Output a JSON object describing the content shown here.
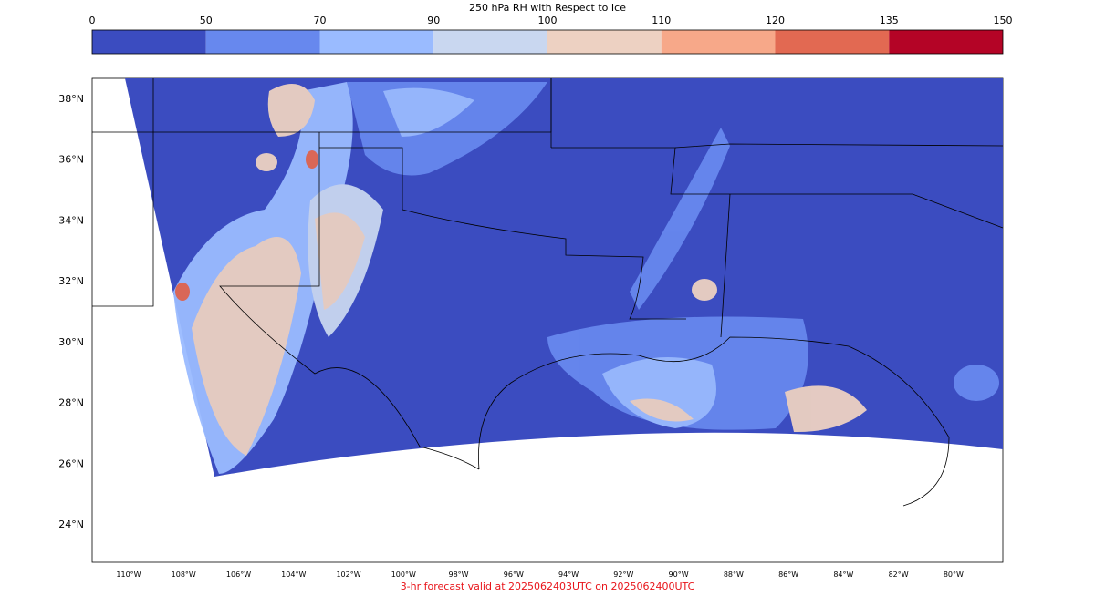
{
  "title": "250 hPa RH with Respect to Ice",
  "colorbar": {
    "bounds": [
      0,
      50,
      70,
      90,
      100,
      110,
      120,
      135,
      150
    ],
    "colors": [
      "#3b4cc0",
      "#6788ee",
      "#9abbff",
      "#c9d7f0",
      "#edd1c2",
      "#f7a889",
      "#e26952",
      "#b40426"
    ]
  },
  "lat_ticks": [
    {
      "value": 38,
      "label": "38°N"
    },
    {
      "value": 36,
      "label": "36°N"
    },
    {
      "value": 34,
      "label": "34°N"
    },
    {
      "value": 32,
      "label": "32°N"
    },
    {
      "value": 30,
      "label": "30°N"
    },
    {
      "value": 28,
      "label": "28°N"
    },
    {
      "value": 26,
      "label": "26°N"
    },
    {
      "value": 24,
      "label": "24°N"
    }
  ],
  "lon_ticks": [
    {
      "value": -110,
      "label": "110°W"
    },
    {
      "value": -108,
      "label": "108°W"
    },
    {
      "value": -106,
      "label": "106°W"
    },
    {
      "value": -104,
      "label": "104°W"
    },
    {
      "value": -102,
      "label": "102°W"
    },
    {
      "value": -100,
      "label": "100°W"
    },
    {
      "value": -98,
      "label": "98°W"
    },
    {
      "value": -96,
      "label": "96°W"
    },
    {
      "value": -94,
      "label": "94°W"
    },
    {
      "value": -92,
      "label": "92°W"
    },
    {
      "value": -90,
      "label": "90°W"
    },
    {
      "value": -88,
      "label": "88°W"
    },
    {
      "value": -86,
      "label": "86°W"
    },
    {
      "value": -84,
      "label": "84°W"
    },
    {
      "value": -82,
      "label": "82°W"
    },
    {
      "value": -80,
      "label": "80°W"
    }
  ],
  "footer": "3-hr forecast valid at 2025062403UTC on 2025062400UTC"
}
